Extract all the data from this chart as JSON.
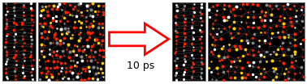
{
  "background_color": "#ffffff",
  "arrow_color": "#ff0000",
  "text_label": "10 ps",
  "text_fontsize": 9,
  "text_color": "#000000",
  "fig_width": 3.78,
  "fig_height": 1.04,
  "dpi": 100,
  "atom_colors_slab": [
    "#ff2200",
    "#ffffff",
    "#888888"
  ],
  "atom_colors_bulk": [
    "#ff2200",
    "#ffcc00",
    "#ffffff",
    "#888888"
  ],
  "bond_color": "#555555",
  "border_color": "#444444"
}
